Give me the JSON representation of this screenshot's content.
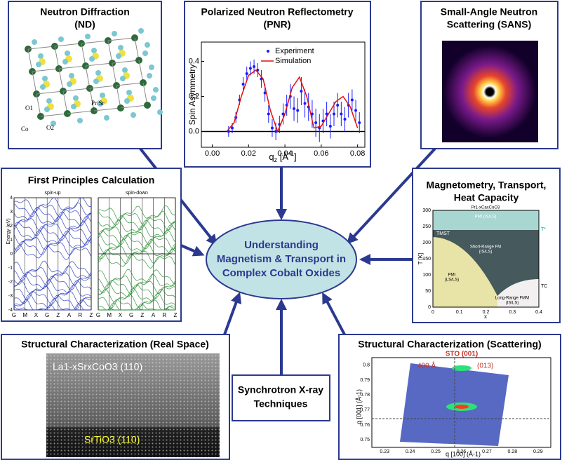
{
  "center": [
    "Understanding",
    "Magnetism & Transport in",
    "Complex Cobalt Oxides"
  ],
  "nd": {
    "title": [
      "Neutron Diffraction",
      "(ND)"
    ],
    "labels": [
      "O1",
      "Pr/Sr",
      "Co",
      "O2"
    ]
  },
  "pnr": {
    "title": [
      "Polarized Neutron Reflectometry",
      "(PNR)"
    ],
    "ylabel": "Spin Asymmetry",
    "xlabel": {
      "base": "q",
      "sub": "z",
      "mid": " [Å",
      "sup": "-1",
      "end": "]"
    },
    "xlim": [
      -0.006,
      0.084
    ],
    "ylim": [
      -0.09,
      0.51
    ],
    "xticks": [
      {
        "value": 0,
        "label": "0.00"
      },
      {
        "value": 0.02,
        "label": "0.02"
      },
      {
        "value": 0.04,
        "label": "0.04"
      },
      {
        "value": 0.06,
        "label": "0.06"
      },
      {
        "value": 0.08,
        "label": "0.08"
      }
    ],
    "yticks": [
      {
        "value": 0,
        "label": "0.0"
      },
      {
        "value": 0.2,
        "label": "0.2"
      },
      {
        "value": 0.4,
        "label": "0.4"
      }
    ],
    "series": [
      {
        "name": "Experiment",
        "color": "#1a1aff",
        "x": [
          0.009,
          0.011,
          0.013,
          0.015,
          0.017,
          0.019,
          0.021,
          0.023,
          0.025,
          0.027,
          0.029,
          0.031,
          0.033,
          0.035,
          0.037,
          0.039,
          0.041,
          0.043,
          0.045,
          0.047,
          0.049,
          0.051,
          0.053,
          0.055,
          0.057,
          0.059,
          0.061,
          0.063,
          0.065,
          0.067,
          0.069,
          0.071,
          0.073,
          0.075,
          0.077,
          0.079,
          0.081
        ],
        "y": [
          0.0,
          0.02,
          0.08,
          0.18,
          0.27,
          0.33,
          0.36,
          0.37,
          0.35,
          0.3,
          0.22,
          0.1,
          0.02,
          0.0,
          0.04,
          0.1,
          0.15,
          0.2,
          0.13,
          0.12,
          0.23,
          0.16,
          0.14,
          0.1,
          0.05,
          0.02,
          0.06,
          0.1,
          0.03,
          0.1,
          0.15,
          0.1,
          0.07,
          0.15,
          0.18,
          0.12,
          0.05
        ],
        "errors": [
          0.03,
          0.03,
          0.03,
          0.03,
          0.04,
          0.04,
          0.04,
          0.04,
          0.04,
          0.05,
          0.05,
          0.05,
          0.05,
          0.05,
          0.05,
          0.06,
          0.06,
          0.07,
          0.07,
          0.07,
          0.08,
          0.08,
          0.08,
          0.08,
          0.08,
          0.08,
          0.07,
          0.07,
          0.07,
          0.07,
          0.07,
          0.07,
          0.07,
          0.07,
          0.06,
          0.06,
          0.06
        ]
      },
      {
        "name": "Simulation",
        "color": "#e01010",
        "x": [
          0.008,
          0.012,
          0.016,
          0.02,
          0.024,
          0.028,
          0.032,
          0.036,
          0.04,
          0.044,
          0.048,
          0.052,
          0.056,
          0.06,
          0.064,
          0.068,
          0.072,
          0.076,
          0.08
        ],
        "y": [
          0.0,
          0.05,
          0.2,
          0.32,
          0.35,
          0.3,
          0.12,
          0.0,
          0.1,
          0.25,
          0.31,
          0.2,
          0.02,
          0.03,
          0.1,
          0.17,
          0.2,
          0.14,
          0.02
        ]
      }
    ]
  },
  "sans": {
    "title": [
      "Small-Angle Neutron",
      "Scattering (SANS)"
    ]
  },
  "fpc": {
    "title": "First Principles Calculation",
    "panels": [
      "spin-up",
      "spin-down"
    ],
    "ylabel": "Energy (eV)",
    "ylim": [
      -4,
      4
    ],
    "yticks": [
      4,
      3,
      2,
      1,
      0,
      -1,
      -2,
      -3,
      -4
    ],
    "kpoints": [
      "G",
      "M",
      "X",
      "G",
      "Z",
      "A",
      "R",
      "Z"
    ]
  },
  "mag": {
    "title": [
      "Magnetometry, Transport,",
      "Heat Capacity"
    ],
    "compound": "Pr1-xCaxCoO3",
    "regions": [
      "PMI (IS/LS)",
      "Short-Range FM",
      "(IS/LS)",
      "PMI",
      "(LS/LS)",
      "Long-Range FMM",
      "(IS/LS)"
    ],
    "marks": [
      "T*",
      "TMST",
      "TC"
    ],
    "ylabel": "T [K]",
    "xlabel": "x",
    "xlim": [
      0,
      0.4
    ],
    "ylim": [
      0,
      300
    ],
    "xticks": [
      0,
      0.1,
      0.2,
      0.3,
      0.4
    ],
    "yticks": [
      0,
      50,
      100,
      150,
      200,
      250,
      300
    ]
  },
  "real": {
    "title": "Structural Characterization (Real Space)",
    "film": "La1-xSrxCoO3 (110)",
    "substrate": "SrTiO3 (110)"
  },
  "sync": {
    "title": [
      "Synchrotron X-ray",
      "Techniques"
    ]
  },
  "scat": {
    "title": "Structural Characterization (Scattering)",
    "labels": [
      "STO (001)",
      "400 Å",
      "(013)"
    ],
    "ylabel": "q [001] (Å-1)",
    "xlabel": "q [100] (Å-1)",
    "xlim": [
      0.225,
      0.295
    ],
    "ylim": [
      0.745,
      0.805
    ],
    "xticks": [
      0.23,
      0.24,
      0.25,
      0.26,
      0.27,
      0.28,
      0.29
    ],
    "yticks": [
      0.75,
      0.76,
      0.77,
      0.78,
      0.79,
      0.8
    ]
  }
}
